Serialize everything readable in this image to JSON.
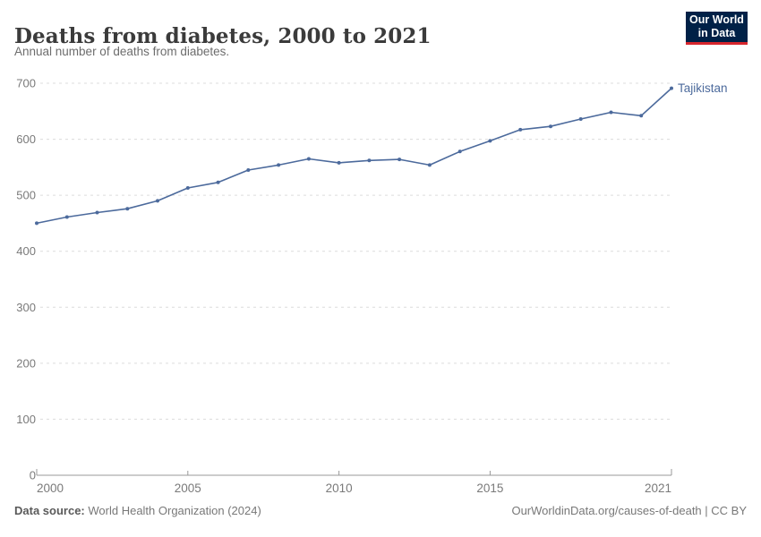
{
  "header": {
    "title": "Deaths from diabetes, 2000 to 2021",
    "subtitle": "Annual number of deaths from diabetes.",
    "logo": {
      "line1": "Our World",
      "line2": "in Data"
    }
  },
  "chart_data": {
    "type": "line",
    "title": "Deaths from diabetes, 2000 to 2021",
    "xlabel": "",
    "ylabel": "",
    "xlim": [
      2000,
      2021
    ],
    "ylim": [
      0,
      700
    ],
    "xticks": [
      2000,
      2005,
      2010,
      2015,
      2021
    ],
    "yticks": [
      0,
      100,
      200,
      300,
      400,
      500,
      600,
      700
    ],
    "grid": "horizontal-dashed",
    "legend_position": "end-of-line-label",
    "x": [
      2000,
      2001,
      2002,
      2003,
      2004,
      2005,
      2006,
      2007,
      2008,
      2009,
      2010,
      2011,
      2012,
      2013,
      2014,
      2015,
      2016,
      2017,
      2018,
      2019,
      2020,
      2021
    ],
    "series": [
      {
        "name": "Tajikistan",
        "color": "#4C6A9C",
        "values": [
          450,
          461,
          469,
          476,
          490,
          513,
          523,
          545,
          554,
          565,
          558,
          562,
          564,
          554,
          578,
          597,
          617,
          623,
          636,
          648,
          642,
          691
        ]
      }
    ]
  },
  "footer": {
    "source_label": "Data source:",
    "source_value": "World Health Organization (2024)",
    "credit": "OurWorldinData.org/causes-of-death | CC BY"
  },
  "colors": {
    "line": "#4C6A9C",
    "logo_bg": "#002147",
    "logo_accent": "#d7262d",
    "grid": "#dcdcdc",
    "axis": "#999999",
    "tick_text": "#7a7a7a",
    "title_text": "#3b3b3b",
    "subtitle_text": "#6d6d6d"
  }
}
